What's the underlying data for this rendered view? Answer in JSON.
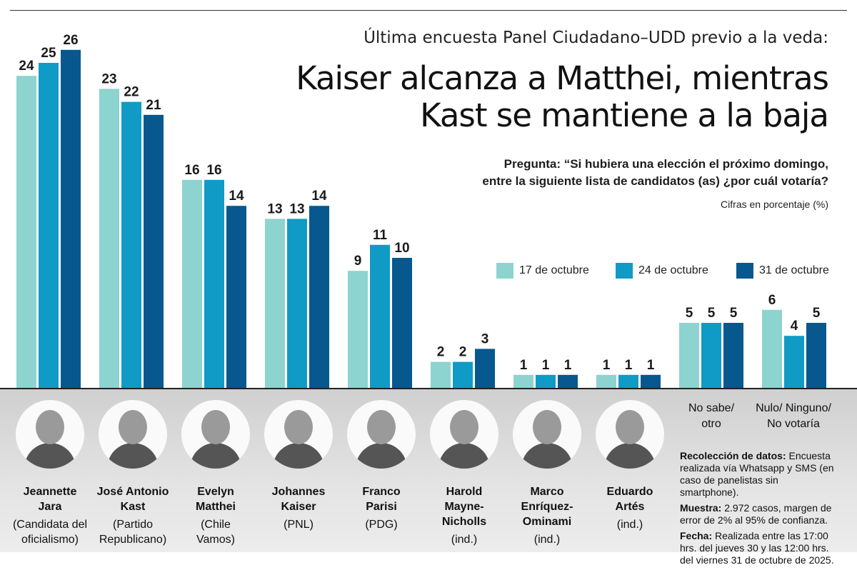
{
  "kicker": "Última encuesta Panel Ciudadano–UDD previo a la veda:",
  "title_line1": "Kaiser alcanza a Matthei, mientras",
  "title_line2": "Kast se mantiene a la baja",
  "question_line1": "Pregunta: “Si hubiera una elección el próximo domingo,",
  "question_line2": "entre la siguiente lista de candidatos (as) ¿por cuál votaría?",
  "units": "Cifras en porcentaje (%)",
  "colors": {
    "s1": "#8dd3cf",
    "s2": "#0f9bc6",
    "s3": "#06588e",
    "panel": "#d9d9d9"
  },
  "chart_data": {
    "type": "bar",
    "categories": [
      "Jeannette Jara",
      "José Antonio Kast",
      "Evelyn Matthei",
      "Johannes Kaiser",
      "Franco Parisi",
      "Harold Mayne-Nicholls",
      "Marco Enríquez-Ominami",
      "Eduardo Artés",
      "No sabe/ otro",
      "Nulo/ Ninguno/ No votaría"
    ],
    "series": [
      {
        "name": "17 de octubre",
        "values": [
          24,
          23,
          16,
          13,
          9,
          2,
          1,
          1,
          5,
          6
        ]
      },
      {
        "name": "24 de octubre",
        "values": [
          25,
          22,
          16,
          13,
          11,
          2,
          1,
          1,
          5,
          4
        ]
      },
      {
        "name": "31 de octubre",
        "values": [
          26,
          21,
          14,
          14,
          10,
          3,
          1,
          1,
          5,
          5
        ]
      }
    ],
    "ylim": [
      0,
      26
    ],
    "grid": false,
    "legend": "right"
  },
  "candidates": [
    {
      "name_l1": "Jeannette",
      "name_l2": "Jara",
      "party_l1": "(Candidata del",
      "party_l2": "oficialismo)",
      "icon": "portrait-icon"
    },
    {
      "name_l1": "José Antonio",
      "name_l2": "Kast",
      "party_l1": "(Partido",
      "party_l2": "Republicano)",
      "icon": "portrait-icon"
    },
    {
      "name_l1": "Evelyn",
      "name_l2": "Matthei",
      "party_l1": "(Chile",
      "party_l2": "Vamos)",
      "icon": "portrait-icon"
    },
    {
      "name_l1": "Johannes",
      "name_l2": "Kaiser",
      "party_l1": "(PNL)",
      "party_l2": "",
      "icon": "portrait-icon"
    },
    {
      "name_l1": "Franco",
      "name_l2": "Parisi",
      "party_l1": "(PDG)",
      "party_l2": "",
      "icon": "portrait-icon"
    },
    {
      "name_l1": "Harold",
      "name_l2": "Mayne-",
      "name_l3": "Nicholls",
      "party_l1": "(ind.)",
      "party_l2": "",
      "icon": "portrait-icon"
    },
    {
      "name_l1": "Marco",
      "name_l2": "Enríquez-",
      "name_l3": "Ominami",
      "party_l1": "(ind.)",
      "party_l2": "",
      "icon": "portrait-icon"
    },
    {
      "name_l1": "Eduardo",
      "name_l2": "Artés",
      "party_l1": "(ind.)",
      "party_l2": "",
      "icon": "portrait-icon"
    }
  ],
  "other_labels": [
    {
      "l1": "No sabe/",
      "l2": "otro"
    },
    {
      "l1": "Nulo/ Ninguno/",
      "l2": "No votaría"
    }
  ],
  "notes": {
    "collection_label": "Recolección de datos:",
    "collection_text": "Encuesta realizada vía Whatsapp y SMS (en caso de panelistas sin smartphone).",
    "sample_label": "Muestra:",
    "sample_text": "2.972 casos, margen de error de 2% al 95% de confianza.",
    "date_label": "Fecha:",
    "date_text": "Realizada entre las 17:00 hrs. del jueves 30 y las 12:00 hrs. del viernes 31 de octubre de 2025."
  }
}
